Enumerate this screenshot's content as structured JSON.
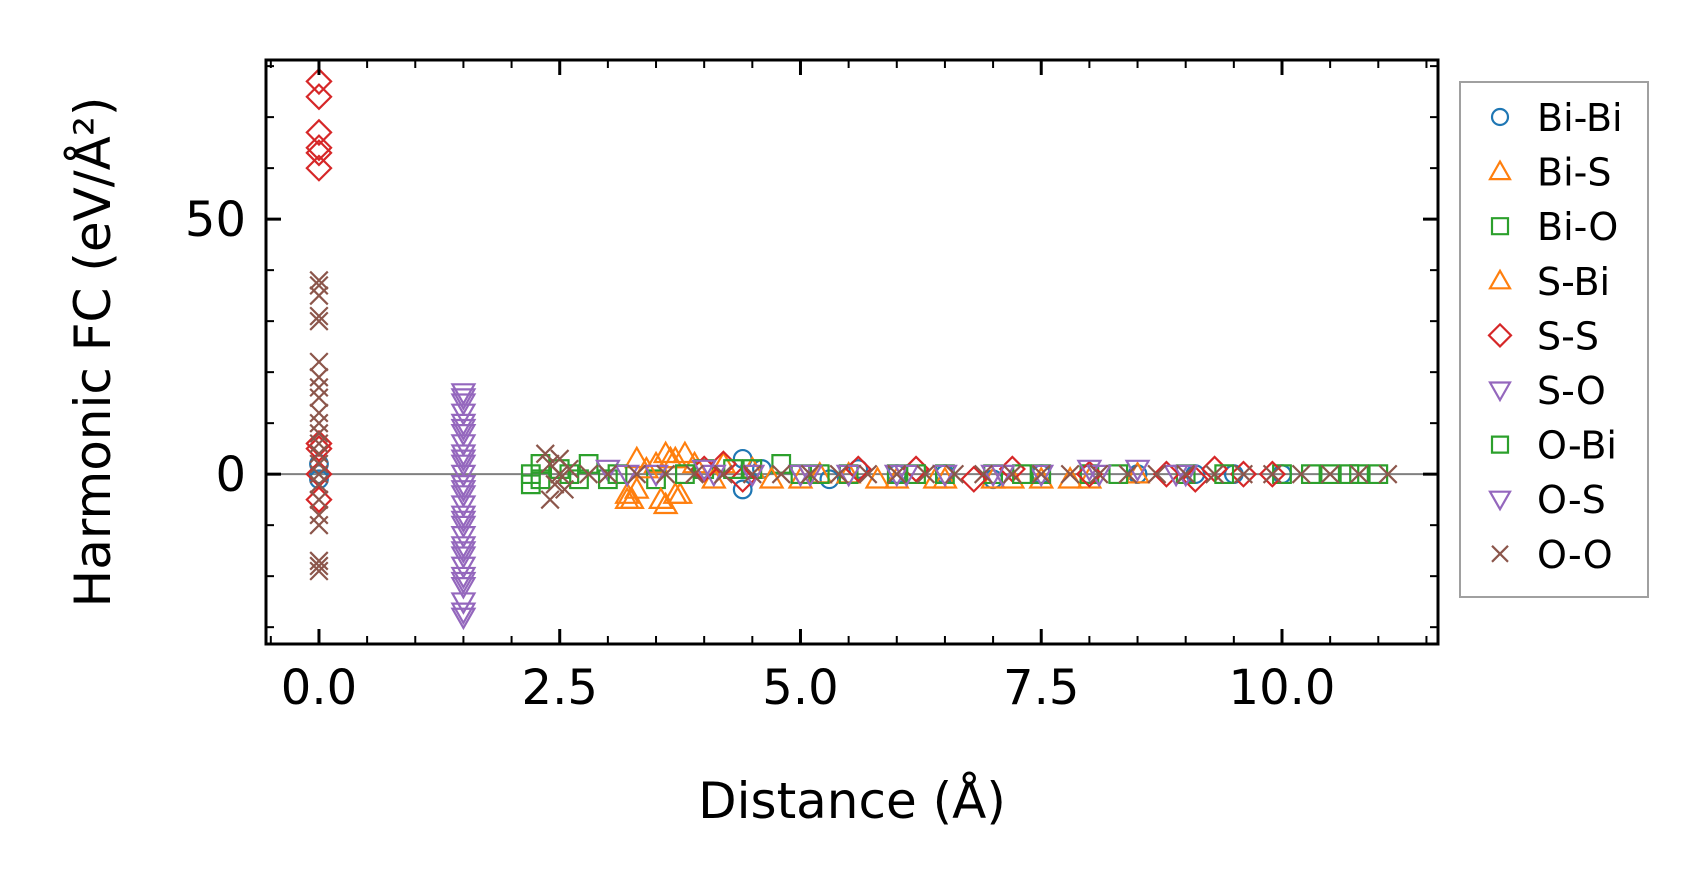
{
  "chart_data": {
    "type": "scatter",
    "title": "",
    "xlabel": "Distance (Å)",
    "ylabel": "Harmonic FC (eV/Å²)",
    "xlim": [
      -0.55,
      11.62
    ],
    "ylim": [
      -33.3,
      81.2
    ],
    "xticks": [
      0.0,
      2.5,
      5.0,
      7.5,
      10.0
    ],
    "xtick_labels": [
      "0.0",
      "2.5",
      "5.0",
      "7.5",
      "10.0"
    ],
    "yticks": [
      0,
      50
    ],
    "ytick_labels": [
      "0",
      "50"
    ],
    "x_minor_step": 0.5,
    "y_minor_step": 10,
    "zero_line": true,
    "grid": false,
    "legend_position": "outside-right",
    "series": [
      {
        "name": "Bi-Bi",
        "marker": "circle",
        "color": "#1f77b4",
        "points": [
          [
            0,
            2
          ],
          [
            0,
            0
          ],
          [
            0,
            -1
          ],
          [
            4.4,
            3
          ],
          [
            4.4,
            -3
          ],
          [
            4.6,
            1
          ],
          [
            5.3,
            -1
          ],
          [
            5.6,
            1
          ],
          [
            6.0,
            0
          ],
          [
            6.5,
            0
          ],
          [
            7.0,
            -1
          ],
          [
            7.5,
            0
          ],
          [
            8.0,
            0
          ],
          [
            8.5,
            0
          ],
          [
            9.1,
            0
          ],
          [
            9.5,
            0
          ],
          [
            10.0,
            0
          ]
        ]
      },
      {
        "name": "Bi-S",
        "marker": "triangle-up",
        "color": "#ff7f0e",
        "points": [
          [
            3.2,
            -4
          ],
          [
            3.2,
            -5
          ],
          [
            3.3,
            3
          ],
          [
            3.3,
            -3
          ],
          [
            3.5,
            2
          ],
          [
            3.6,
            -6
          ],
          [
            3.6,
            4
          ],
          [
            3.7,
            3
          ],
          [
            3.7,
            -4
          ],
          [
            3.8,
            4
          ],
          [
            3.9,
            2
          ],
          [
            4.1,
            -1
          ],
          [
            4.5,
            1
          ],
          [
            5.0,
            -1
          ],
          [
            5.5,
            0
          ],
          [
            6.0,
            -1
          ],
          [
            6.5,
            -1
          ],
          [
            7.0,
            -1
          ],
          [
            7.5,
            -1
          ],
          [
            8.0,
            -1
          ],
          [
            8.5,
            0
          ]
        ]
      },
      {
        "name": "Bi-O",
        "marker": "square",
        "color": "#2ca02c",
        "points": [
          [
            2.2,
            0
          ],
          [
            2.2,
            -2
          ],
          [
            2.3,
            2
          ],
          [
            2.5,
            1
          ],
          [
            2.7,
            -1
          ],
          [
            2.8,
            2
          ],
          [
            3.0,
            -1
          ],
          [
            3.5,
            -1
          ],
          [
            4.0,
            1
          ],
          [
            4.5,
            1
          ],
          [
            4.8,
            2
          ],
          [
            5.0,
            0
          ],
          [
            5.5,
            0
          ],
          [
            6.0,
            0
          ],
          [
            6.5,
            0
          ],
          [
            7.0,
            0
          ],
          [
            7.5,
            0
          ],
          [
            8.0,
            0
          ],
          [
            9.0,
            0
          ],
          [
            10.0,
            0
          ],
          [
            10.5,
            0
          ],
          [
            10.8,
            0
          ],
          [
            11.0,
            0
          ]
        ]
      },
      {
        "name": "S-Bi",
        "marker": "triangle-up",
        "color": "#ff7f0e",
        "points": [
          [
            3.25,
            -5
          ],
          [
            3.4,
            1
          ],
          [
            3.55,
            -5
          ],
          [
            3.65,
            3
          ],
          [
            3.75,
            -4
          ],
          [
            4.2,
            2
          ],
          [
            4.7,
            -1
          ],
          [
            5.2,
            0
          ],
          [
            5.8,
            -1
          ],
          [
            6.4,
            -1
          ],
          [
            7.2,
            -1
          ],
          [
            7.8,
            -1
          ]
        ]
      },
      {
        "name": "S-S",
        "marker": "diamond",
        "color": "#d62728",
        "points": [
          [
            0,
            77
          ],
          [
            0,
            74
          ],
          [
            0,
            67
          ],
          [
            0,
            64
          ],
          [
            0,
            63
          ],
          [
            0,
            60
          ],
          [
            0,
            6
          ],
          [
            0,
            5
          ],
          [
            0,
            0
          ],
          [
            0,
            -5
          ],
          [
            4.0,
            1
          ],
          [
            4.2,
            2
          ],
          [
            4.4,
            -1
          ],
          [
            5.6,
            1
          ],
          [
            6.2,
            1
          ],
          [
            6.8,
            -1
          ],
          [
            7.2,
            1
          ],
          [
            8.0,
            0
          ],
          [
            8.8,
            0
          ],
          [
            9.1,
            -1
          ],
          [
            9.3,
            1
          ],
          [
            9.6,
            0
          ],
          [
            9.9,
            0
          ]
        ]
      },
      {
        "name": "S-O",
        "marker": "triangle-down",
        "color": "#9467bd",
        "points": [
          [
            1.5,
            16
          ],
          [
            1.5,
            14
          ],
          [
            1.5,
            12
          ],
          [
            1.5,
            10
          ],
          [
            1.5,
            8
          ],
          [
            1.5,
            6
          ],
          [
            1.5,
            4
          ],
          [
            1.5,
            2
          ],
          [
            1.5,
            0
          ],
          [
            1.5,
            -2
          ],
          [
            1.5,
            -4
          ],
          [
            1.5,
            -6
          ],
          [
            1.5,
            -8
          ],
          [
            1.5,
            -10
          ],
          [
            1.5,
            -12
          ],
          [
            1.5,
            -14
          ],
          [
            1.5,
            -16
          ],
          [
            1.5,
            -18
          ],
          [
            1.5,
            -20
          ],
          [
            1.5,
            -22
          ],
          [
            1.5,
            -25
          ],
          [
            1.5,
            -27
          ],
          [
            1.5,
            -28
          ],
          [
            3.0,
            1
          ],
          [
            3.5,
            0
          ],
          [
            4.0,
            1
          ],
          [
            4.5,
            0
          ],
          [
            5.0,
            0
          ],
          [
            5.5,
            0
          ],
          [
            6.0,
            0
          ],
          [
            6.5,
            0
          ],
          [
            7.0,
            0
          ],
          [
            7.5,
            0
          ],
          [
            8.0,
            1
          ],
          [
            8.5,
            1
          ],
          [
            9.0,
            0
          ]
        ]
      },
      {
        "name": "O-Bi",
        "marker": "square",
        "color": "#2ca02c",
        "points": [
          [
            2.3,
            -1
          ],
          [
            2.6,
            0
          ],
          [
            3.1,
            0
          ],
          [
            3.8,
            0
          ],
          [
            4.3,
            1
          ],
          [
            5.2,
            0
          ],
          [
            6.2,
            0
          ],
          [
            7.3,
            0
          ],
          [
            8.3,
            0
          ],
          [
            9.4,
            0
          ],
          [
            10.3,
            0
          ],
          [
            10.7,
            0
          ]
        ]
      },
      {
        "name": "O-S",
        "marker": "triangle-down",
        "color": "#9467bd",
        "points": [
          [
            1.5,
            15
          ],
          [
            1.5,
            9
          ],
          [
            1.5,
            3
          ],
          [
            1.5,
            -3
          ],
          [
            1.5,
            -9
          ],
          [
            1.5,
            -15
          ],
          [
            1.5,
            -21
          ],
          [
            3.2,
            0
          ],
          [
            4.1,
            0
          ],
          [
            5.1,
            0
          ],
          [
            6.1,
            0
          ],
          [
            7.1,
            0
          ],
          [
            8.1,
            0
          ],
          [
            8.9,
            0
          ]
        ]
      },
      {
        "name": "O-O",
        "marker": "x",
        "color": "#8c564b",
        "points": [
          [
            0,
            38
          ],
          [
            0,
            37
          ],
          [
            0,
            35
          ],
          [
            0,
            31
          ],
          [
            0,
            30
          ],
          [
            0,
            22
          ],
          [
            0,
            19
          ],
          [
            0,
            17
          ],
          [
            0,
            15
          ],
          [
            0,
            12
          ],
          [
            0,
            10
          ],
          [
            0,
            8
          ],
          [
            0,
            6
          ],
          [
            0,
            4
          ],
          [
            0,
            2
          ],
          [
            0,
            0
          ],
          [
            0,
            -2
          ],
          [
            0,
            -5
          ],
          [
            0,
            -8
          ],
          [
            0,
            -10
          ],
          [
            0,
            -17
          ],
          [
            0,
            -18
          ],
          [
            0,
            -19
          ],
          [
            2.35,
            4
          ],
          [
            2.4,
            2
          ],
          [
            2.45,
            -2
          ],
          [
            2.4,
            -5
          ],
          [
            2.5,
            3
          ],
          [
            2.5,
            0
          ],
          [
            2.55,
            -3
          ],
          [
            2.6,
            1
          ],
          [
            2.8,
            0
          ],
          [
            3.0,
            0
          ],
          [
            3.3,
            0
          ],
          [
            3.6,
            0
          ],
          [
            3.9,
            0
          ],
          [
            4.2,
            0
          ],
          [
            4.5,
            0
          ],
          [
            4.8,
            0
          ],
          [
            5.1,
            0
          ],
          [
            5.4,
            0
          ],
          [
            5.7,
            0
          ],
          [
            6.0,
            0
          ],
          [
            6.3,
            0
          ],
          [
            6.6,
            0
          ],
          [
            6.9,
            0
          ],
          [
            7.2,
            0
          ],
          [
            7.5,
            0
          ],
          [
            7.8,
            0
          ],
          [
            8.1,
            0
          ],
          [
            8.4,
            0
          ],
          [
            8.7,
            0
          ],
          [
            9.0,
            0
          ],
          [
            9.3,
            0
          ],
          [
            9.6,
            0
          ],
          [
            9.9,
            0
          ],
          [
            10.2,
            0
          ],
          [
            10.5,
            0
          ],
          [
            10.8,
            0
          ],
          [
            11.1,
            0
          ]
        ]
      }
    ]
  },
  "colors": {
    "zero_line": "#808080",
    "legend_border": "#a0a0a0"
  }
}
